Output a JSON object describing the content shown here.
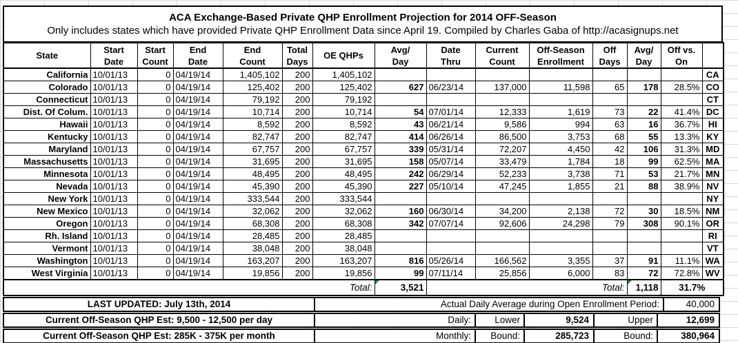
{
  "title": {
    "main": "ACA Exchange-Based Private QHP Enrollment Projection for 2014 OFF-Season",
    "sub": "Only includes states which have provided Private QHP Enrollment Data since April 19. Compiled by Charles Gaba of http://acasignups.net"
  },
  "table": {
    "columns": [
      "State",
      "Start\nDate",
      "Start\nCount",
      "End\nDate",
      "End\nCount",
      "Total\nDays",
      "OE QHPs",
      "Avg/\nDay",
      "Date\nThru",
      "Current\nCount",
      "Off-Season\nEnrollment",
      "Off\nDays",
      "Avg/\nDay",
      "Off vs.\nOn",
      ""
    ],
    "rows": [
      [
        "California",
        "10/01/13",
        "0",
        "04/19/14",
        "1,405,102",
        "200",
        "1,405,102",
        "",
        "",
        "",
        "",
        "",
        "",
        "",
        "CA"
      ],
      [
        "Colorado",
        "10/01/13",
        "0",
        "04/19/14",
        "125,402",
        "200",
        "125,402",
        "627",
        "06/23/14",
        "137,000",
        "11,598",
        "65",
        "178",
        "28.5%",
        "CO"
      ],
      [
        "Connecticut",
        "10/01/13",
        "0",
        "04/19/14",
        "79,192",
        "200",
        "79,192",
        "",
        "",
        "",
        "",
        "",
        "",
        "",
        "CT"
      ],
      [
        "Dist. Of Colum.",
        "10/01/13",
        "0",
        "04/19/14",
        "10,714",
        "200",
        "10,714",
        "54",
        "07/01/14",
        "12,333",
        "1,619",
        "73",
        "22",
        "41.4%",
        "DC"
      ],
      [
        "Hawaii",
        "10/01/13",
        "0",
        "04/19/14",
        "8,592",
        "200",
        "8,592",
        "43",
        "06/21/14",
        "9,586",
        "994",
        "63",
        "16",
        "36.7%",
        "HI"
      ],
      [
        "Kentucky",
        "10/01/13",
        "0",
        "04/19/14",
        "82,747",
        "200",
        "82,747",
        "414",
        "06/26/14",
        "86,500",
        "3,753",
        "68",
        "55",
        "13.3%",
        "KY"
      ],
      [
        "Maryland",
        "10/01/13",
        "0",
        "04/19/14",
        "67,757",
        "200",
        "67,757",
        "339",
        "05/31/14",
        "72,207",
        "4,450",
        "42",
        "106",
        "31.3%",
        "MD"
      ],
      [
        "Massachusetts",
        "10/01/13",
        "0",
        "04/19/14",
        "31,695",
        "200",
        "31,695",
        "158",
        "05/07/14",
        "33,479",
        "1,784",
        "18",
        "99",
        "62.5%",
        "MA"
      ],
      [
        "Minnesota",
        "10/01/13",
        "0",
        "04/19/14",
        "48,495",
        "200",
        "48,495",
        "242",
        "06/29/14",
        "52,233",
        "3,738",
        "71",
        "53",
        "21.7%",
        "MN"
      ],
      [
        "Nevada",
        "10/01/13",
        "0",
        "04/19/14",
        "45,390",
        "200",
        "45,390",
        "227",
        "05/10/14",
        "47,245",
        "1,855",
        "21",
        "88",
        "38.9%",
        "NV"
      ],
      [
        "New York",
        "10/01/13",
        "0",
        "04/19/14",
        "333,544",
        "200",
        "333,544",
        "",
        "",
        "",
        "",
        "",
        "",
        "",
        "NY"
      ],
      [
        "New Mexico",
        "10/01/13",
        "0",
        "04/19/14",
        "32,062",
        "200",
        "32,062",
        "160",
        "06/30/14",
        "34,200",
        "2,138",
        "72",
        "30",
        "18.5%",
        "NM"
      ],
      [
        "Oregon",
        "10/01/13",
        "0",
        "04/19/14",
        "68,308",
        "200",
        "68,308",
        "342",
        "07/07/14",
        "92,606",
        "24,298",
        "79",
        "308",
        "90.1%",
        "OR"
      ],
      [
        "Rh. Island",
        "10/01/13",
        "0",
        "04/19/14",
        "28,485",
        "200",
        "28,485",
        "",
        "",
        "",
        "",
        "",
        "",
        "",
        "RI"
      ],
      [
        "Vermont",
        "10/01/13",
        "0",
        "04/19/14",
        "38,048",
        "200",
        "38,048",
        "",
        "",
        "",
        "",
        "",
        "",
        "",
        "VT"
      ],
      [
        "Washington",
        "10/01/13",
        "0",
        "04/19/14",
        "163,207",
        "200",
        "163,207",
        "816",
        "05/26/14",
        "166,562",
        "3,355",
        "37",
        "91",
        "11.1%",
        "WA"
      ],
      [
        "West Virginia",
        "10/01/13",
        "0",
        "04/19/14",
        "19,856",
        "200",
        "19,856",
        "99",
        "07/11/14",
        "25,856",
        "6,000",
        "83",
        "72",
        "72.8%",
        "WV"
      ]
    ],
    "total_row": {
      "label_left": "Total:",
      "avg_day_total": "3,521",
      "label_right": "Total:",
      "off_avg_day_total": "1,118",
      "off_vs_on_total": "31.7%"
    }
  },
  "footer": {
    "last_updated": "LAST UPDATED: July 13th, 2014",
    "daily_est": "Current Off-Season QHP Est: 9,500 - 12,500 per day",
    "monthly_est": "Current Off-Season QHP Est: 285K - 375K per month",
    "oe_daily_avg_label": "Actual Daily Average during Open Enrollment Period:",
    "oe_daily_avg_value": "40,000",
    "daily_label": "Daily:",
    "monthly_label": "Monthly:",
    "lower_label_top": "Lower",
    "lower_label_bottom": "Bound:",
    "upper_label_top": "Upper",
    "upper_label_bottom": "Bound:",
    "daily_lower": "9,524",
    "daily_upper": "12,699",
    "monthly_lower": "285,723",
    "monthly_upper": "380,964"
  },
  "colors": {
    "highlight": "#FFF200",
    "border": "#000000",
    "grid": "#D7D7D7",
    "comment_flag": "#1E8E3E"
  }
}
